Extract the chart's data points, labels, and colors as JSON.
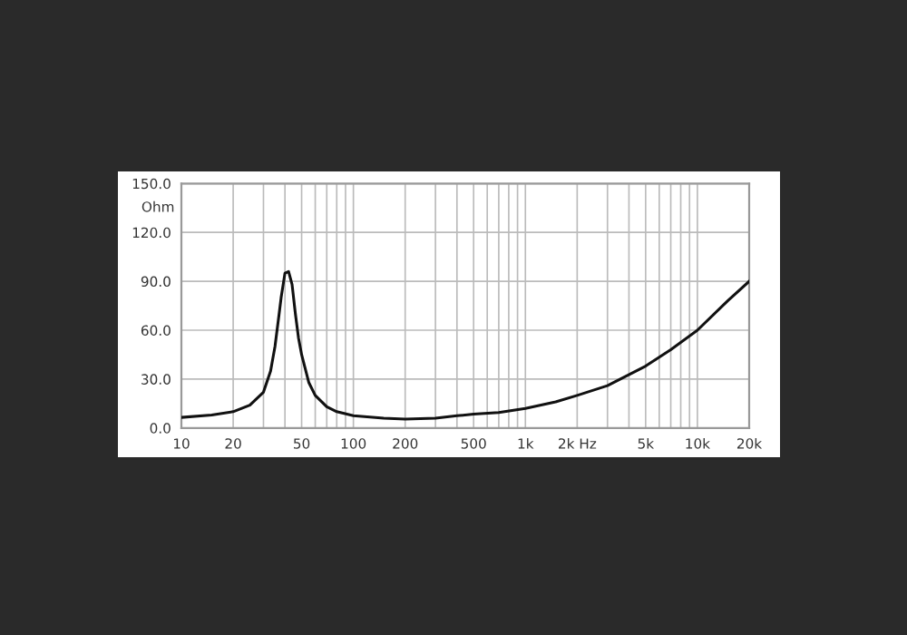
{
  "chart_data": {
    "type": "line",
    "ylabel": "Ohm",
    "x": [
      10,
      15,
      20,
      25,
      30,
      33,
      35,
      37,
      38,
      40,
      42,
      44,
      46,
      48,
      50,
      55,
      60,
      70,
      80,
      100,
      150,
      200,
      300,
      400,
      500,
      700,
      1000,
      1500,
      2000,
      3000,
      5000,
      7000,
      10000,
      15000,
      20000
    ],
    "series": [
      {
        "color": "#111111",
        "values": [
          6.5,
          8,
          10,
          14,
          22,
          35,
          50,
          70,
          80,
          95,
          96,
          88,
          70,
          55,
          45,
          28,
          20,
          13,
          10,
          7.5,
          6,
          5.5,
          6,
          7.5,
          8.5,
          9.5,
          12,
          16,
          20,
          26,
          38,
          48,
          60,
          78,
          90
        ]
      }
    ],
    "log": "x",
    "xlim": [
      10,
      20000
    ],
    "ylim": [
      0,
      150
    ],
    "xticks": [
      10,
      20,
      {
        "value": 30,
        "label": null
      },
      {
        "value": 40,
        "label": null
      },
      50,
      {
        "value": 60,
        "label": null
      },
      {
        "value": 70,
        "label": null
      },
      {
        "value": 80,
        "label": null
      },
      {
        "value": 90,
        "label": null
      },
      100,
      200,
      {
        "value": 300,
        "label": null
      },
      {
        "value": 400,
        "label": null
      },
      500,
      {
        "value": 600,
        "label": null
      },
      {
        "value": 700,
        "label": null
      },
      {
        "value": 800,
        "label": null
      },
      {
        "value": 900,
        "label": null
      },
      {
        "value": 1000,
        "label": "1k"
      },
      {
        "value": 2000,
        "label": "2k Hz"
      },
      {
        "value": 3000,
        "label": null
      },
      {
        "value": 4000,
        "label": null
      },
      {
        "value": 5000,
        "label": "5k"
      },
      {
        "value": 6000,
        "label": null
      },
      {
        "value": 7000,
        "label": null
      },
      {
        "value": 8000,
        "label": null
      },
      {
        "value": 9000,
        "label": null
      },
      {
        "value": 10000,
        "label": "10k"
      },
      {
        "value": 20000,
        "label": "20k"
      }
    ],
    "yticks": [
      {
        "value": 0,
        "label": "0.0"
      },
      {
        "value": 30,
        "label": "30.0"
      },
      {
        "value": 60,
        "label": "60.0"
      },
      {
        "value": 90,
        "label": "90.0"
      },
      {
        "value": 120,
        "label": "120.0"
      },
      {
        "value": 150,
        "label": "150.0"
      }
    ],
    "grid": true,
    "legend": false,
    "marker": "none",
    "line_style": "solid"
  }
}
